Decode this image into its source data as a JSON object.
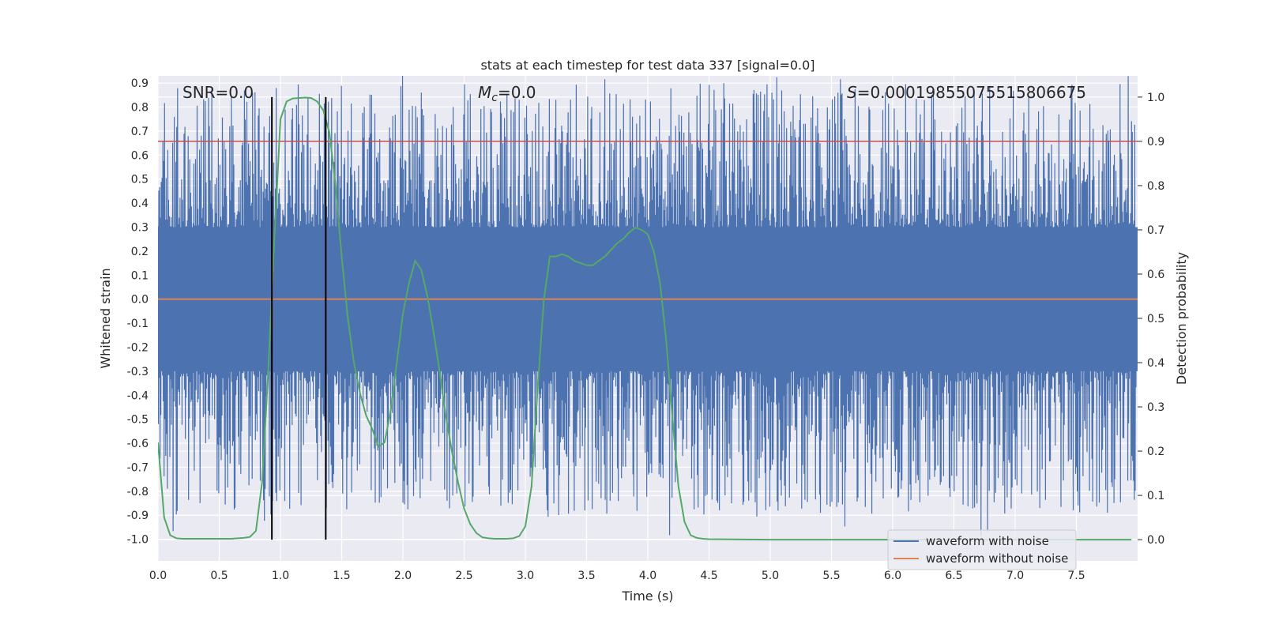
{
  "chart_data": {
    "type": "line",
    "title": "stats at each timestep for test data 337 [signal=0.0]",
    "xlabel": "Time (s)",
    "ylabel": "Whitened strain",
    "y2label": "Detection probability",
    "xlim": [
      0.0,
      8.0
    ],
    "ylim": [
      -1.09,
      0.93
    ],
    "y2lim": [
      -0.048,
      1.048
    ],
    "xticks": [
      "0.0",
      "0.5",
      "1.0",
      "1.5",
      "2.0",
      "2.5",
      "3.0",
      "3.5",
      "4.0",
      "4.5",
      "5.0",
      "5.5",
      "6.0",
      "6.5",
      "7.0",
      "7.5"
    ],
    "yticks": [
      "0.9",
      "0.8",
      "0.7",
      "0.6",
      "0.5",
      "0.4",
      "0.3",
      "0.2",
      "0.1",
      "0.0",
      "-0.1",
      "-0.2",
      "-0.3",
      "-0.4",
      "-0.5",
      "-0.6",
      "-0.7",
      "-0.8",
      "-0.9",
      "-1.0"
    ],
    "y2ticks": [
      "1.0",
      "0.9",
      "0.8",
      "0.7",
      "0.6",
      "0.5",
      "0.4",
      "0.3",
      "0.2",
      "0.1",
      "0.0"
    ],
    "annotations": {
      "snr": "SNR=0.0",
      "mc": "=0.0",
      "mc_symbol": "M",
      "mc_sub": "c",
      "s": "=0.00019855075515806675",
      "s_symbol": "S"
    },
    "threshold": {
      "axis": "right",
      "value": 0.9,
      "color": "#c44e52"
    },
    "vlines": [
      0.93,
      1.37
    ],
    "series": [
      {
        "name": "waveform with noise",
        "axis": "left",
        "color": "#4c72b0",
        "style": "noise",
        "core_half_width": 0.3,
        "max_abs": 0.9
      },
      {
        "name": "waveform without noise",
        "axis": "left",
        "color": "#dd8452",
        "x": [
          0.0,
          8.0
        ],
        "values": [
          0.0,
          0.0
        ]
      },
      {
        "name": "detection probability",
        "axis": "right",
        "color": "#55a868",
        "x": [
          0.0,
          0.05,
          0.1,
          0.15,
          0.2,
          0.25,
          0.3,
          0.35,
          0.4,
          0.45,
          0.5,
          0.55,
          0.6,
          0.65,
          0.7,
          0.75,
          0.8,
          0.85,
          0.9,
          0.95,
          1.0,
          1.05,
          1.1,
          1.15,
          1.2,
          1.25,
          1.3,
          1.35,
          1.4,
          1.45,
          1.5,
          1.55,
          1.6,
          1.65,
          1.7,
          1.75,
          1.8,
          1.85,
          1.9,
          1.95,
          2.0,
          2.05,
          2.1,
          2.15,
          2.2,
          2.25,
          2.3,
          2.35,
          2.4,
          2.45,
          2.5,
          2.55,
          2.6,
          2.65,
          2.7,
          2.75,
          2.8,
          2.85,
          2.9,
          2.95,
          3.0,
          3.05,
          3.1,
          3.15,
          3.2,
          3.25,
          3.3,
          3.35,
          3.4,
          3.45,
          3.5,
          3.55,
          3.6,
          3.65,
          3.7,
          3.75,
          3.8,
          3.85,
          3.9,
          3.95,
          4.0,
          4.05,
          4.1,
          4.15,
          4.2,
          4.25,
          4.3,
          4.35,
          4.4,
          4.45,
          4.5,
          5.0,
          5.5,
          6.0,
          6.5,
          7.0,
          7.5,
          7.95
        ],
        "values": [
          0.22,
          0.05,
          0.01,
          0.003,
          0.002,
          0.002,
          0.002,
          0.002,
          0.002,
          0.002,
          0.002,
          0.002,
          0.002,
          0.003,
          0.004,
          0.006,
          0.02,
          0.13,
          0.38,
          0.68,
          0.95,
          0.99,
          0.997,
          0.998,
          0.999,
          0.998,
          0.99,
          0.97,
          0.92,
          0.8,
          0.64,
          0.5,
          0.4,
          0.33,
          0.28,
          0.25,
          0.21,
          0.22,
          0.29,
          0.4,
          0.51,
          0.58,
          0.63,
          0.61,
          0.55,
          0.47,
          0.38,
          0.28,
          0.2,
          0.13,
          0.07,
          0.035,
          0.015,
          0.005,
          0.003,
          0.002,
          0.002,
          0.002,
          0.003,
          0.008,
          0.03,
          0.12,
          0.34,
          0.54,
          0.64,
          0.64,
          0.645,
          0.64,
          0.63,
          0.625,
          0.62,
          0.62,
          0.63,
          0.64,
          0.655,
          0.67,
          0.68,
          0.695,
          0.705,
          0.7,
          0.69,
          0.65,
          0.58,
          0.45,
          0.28,
          0.12,
          0.04,
          0.01,
          0.004,
          0.002,
          0.001,
          0.0,
          0.0,
          0.0,
          0.0,
          0.0,
          0.0,
          0.0
        ]
      }
    ],
    "legend": [
      "waveform with noise",
      "waveform without noise"
    ]
  }
}
